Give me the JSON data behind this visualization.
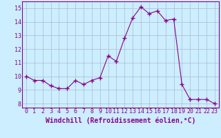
{
  "x": [
    0,
    1,
    2,
    3,
    4,
    5,
    6,
    7,
    8,
    9,
    10,
    11,
    12,
    13,
    14,
    15,
    16,
    17,
    18,
    19,
    20,
    21,
    22,
    23
  ],
  "y": [
    10.0,
    9.7,
    9.7,
    9.3,
    9.1,
    9.1,
    9.7,
    9.4,
    9.7,
    9.9,
    11.5,
    11.1,
    12.8,
    14.3,
    15.1,
    14.6,
    14.8,
    14.1,
    14.2,
    9.4,
    8.3,
    8.3,
    8.3,
    8.0
  ],
  "line_color": "#880088",
  "marker": "+",
  "marker_size": 4,
  "bg_color": "#cceeff",
  "grid_color": "#aabbcc",
  "xlabel": "Windchill (Refroidissement éolien,°C)",
  "xlim": [
    -0.5,
    23.5
  ],
  "ylim": [
    7.7,
    15.5
  ],
  "yticks": [
    8,
    9,
    10,
    11,
    12,
    13,
    14,
    15
  ],
  "xticks": [
    0,
    1,
    2,
    3,
    4,
    5,
    6,
    7,
    8,
    9,
    10,
    11,
    12,
    13,
    14,
    15,
    16,
    17,
    18,
    19,
    20,
    21,
    22,
    23
  ],
  "tick_color": "#880088",
  "label_fontsize": 7,
  "tick_fontsize": 6
}
